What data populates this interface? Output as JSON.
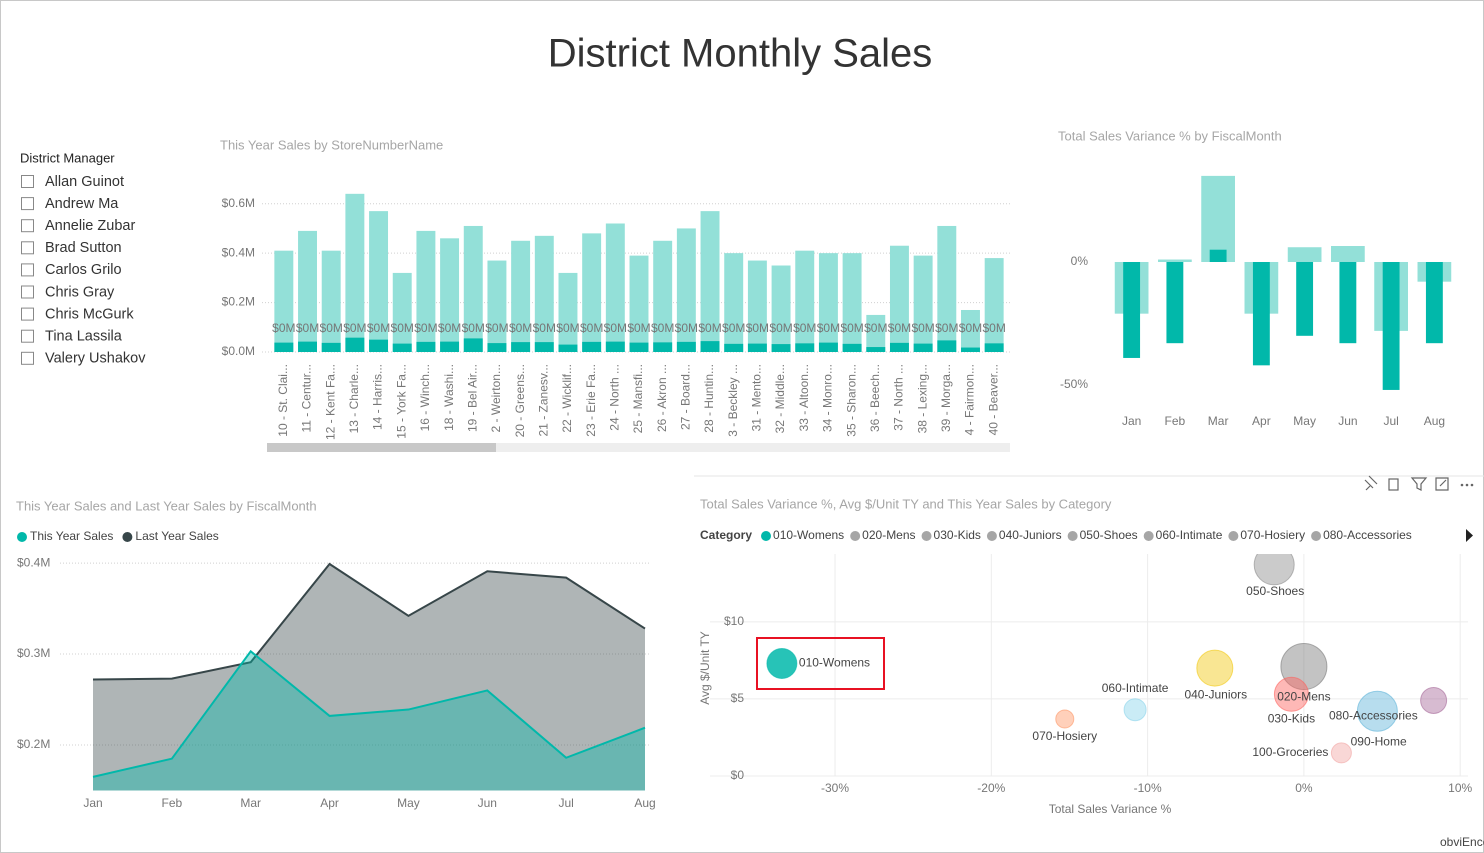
{
  "page": {
    "title": "District Monthly Sales",
    "footer": "obviEnce llc ©"
  },
  "slicer": {
    "title": "District Manager",
    "items": [
      "Allan Guinot",
      "Andrew Ma",
      "Annelie Zubar",
      "Brad Sutton",
      "Carlos Grilo",
      "Chris Gray",
      "Chris McGurk",
      "Tina Lassila",
      "Valery Ushakov"
    ]
  },
  "chart_data": [
    {
      "type": "bar",
      "title": "This Year Sales by StoreNumberName",
      "categories": [
        "10 - St. Clai...",
        "11 - Centur...",
        "12 - Kent Fa...",
        "13 - Charle...",
        "14 - Harris...",
        "15 - York Fa...",
        "16 - Winch...",
        "18 - Washi...",
        "19 - Bel Air...",
        "2 - Weirton...",
        "20 - Greens...",
        "21 - Zanesv...",
        "22 - Wicklif...",
        "23 - Erie Fa...",
        "24 - North ...",
        "25 - Mansfi...",
        "26 - Akron ...",
        "27 - Board...",
        "28 - Huntin...",
        "3 - Beckley ...",
        "31 - Mento...",
        "32 - Middle...",
        "33 - Altoon...",
        "34 - Monro...",
        "35 - Sharon...",
        "36 - Beech...",
        "37 - North ...",
        "38 - Lexing...",
        "39 - Morga...",
        "4 - Fairmon...",
        "40 - Beaver..."
      ],
      "series": [
        {
          "color": "#93e0d8",
          "values": [
            410000,
            490000,
            410000,
            640000,
            570000,
            320000,
            490000,
            460000,
            510000,
            370000,
            450000,
            470000,
            320000,
            480000,
            520000,
            390000,
            450000,
            500000,
            570000,
            400000,
            370000,
            350000,
            410000,
            400000,
            400000,
            150000,
            430000,
            390000,
            510000,
            170000,
            380000
          ]
        },
        {
          "color": "#01b8aa",
          "values": [
            38000,
            42000,
            37000,
            58000,
            50000,
            34000,
            41000,
            42000,
            55000,
            36000,
            40000,
            40000,
            30000,
            41000,
            42000,
            38000,
            39000,
            41000,
            44000,
            33000,
            34000,
            32000,
            35000,
            38000,
            33000,
            20000,
            37000,
            34000,
            47000,
            18000,
            35000
          ],
          "value_labels": [
            "$0M",
            "$0M",
            "$0M",
            "$0M",
            "$0M",
            "$0M",
            "$0M",
            "$0M",
            "$0M",
            "$0M",
            "$0M",
            "$0M",
            "$0M",
            "$0M",
            "$0M",
            "$0M",
            "$0M",
            "$0M",
            "$0M",
            "$0M",
            "$0M",
            "$0M",
            "$0M",
            "$0M",
            "$0M",
            "$0M",
            "$0M",
            "$0M",
            "$0M",
            "$0M",
            "$0M"
          ]
        }
      ],
      "ylim": [
        0,
        700000
      ],
      "yticks": [
        {
          "value": 0,
          "label": "$0.0M"
        },
        {
          "value": 200000,
          "label": "$0.2M"
        },
        {
          "value": 400000,
          "label": "$0.4M"
        },
        {
          "value": 600000,
          "label": "$0.6M"
        }
      ],
      "grid": true
    },
    {
      "type": "bar",
      "title": "Total Sales Variance % by FiscalMonth",
      "categories": [
        "Jan",
        "Feb",
        "Mar",
        "Apr",
        "May",
        "Jun",
        "Jul",
        "Aug"
      ],
      "series": [
        {
          "color": "#93e0d8",
          "values": [
            -21,
            1,
            35,
            -21,
            6,
            6.5,
            -28,
            -8
          ]
        },
        {
          "color": "#01b8aa",
          "values": [
            -39,
            -33,
            5,
            -42,
            -30,
            -33,
            -52,
            -33
          ]
        }
      ],
      "ylim": [
        -58,
        38
      ],
      "yticks": [
        {
          "value": -50,
          "label": "-50%"
        },
        {
          "value": 0,
          "label": "0%"
        }
      ],
      "grid": false
    },
    {
      "type": "area",
      "title": "This Year Sales and Last Year Sales by FiscalMonth",
      "categories": [
        "Jan",
        "Feb",
        "Mar",
        "Apr",
        "May",
        "Jun",
        "Jul",
        "Aug"
      ],
      "series": [
        {
          "name": "This Year Sales",
          "color": "#01b8aa",
          "values": [
            165000,
            185000,
            303000,
            232000,
            239000,
            260000,
            186000,
            219000
          ]
        },
        {
          "name": "Last Year Sales",
          "color": "#374649",
          "values": [
            272000,
            273000,
            291000,
            399000,
            342000,
            391000,
            384000,
            328000
          ]
        }
      ],
      "ylim": [
        150000,
        410000
      ],
      "yticks": [
        {
          "value": 200000,
          "label": "$0.2M"
        },
        {
          "value": 300000,
          "label": "$0.3M"
        },
        {
          "value": 400000,
          "label": "$0.4M"
        }
      ],
      "grid": true
    },
    {
      "type": "scatter",
      "title": "Total Sales Variance %, Avg $/Unit TY and This Year Sales by Category",
      "legend_title": "Category",
      "categories": [
        "010-Womens",
        "020-Mens",
        "030-Kids",
        "040-Juniors",
        "050-Shoes",
        "060-Intimate",
        "070-Hosiery",
        "080-Accessories",
        "090-Home",
        "100-Groceries"
      ],
      "x": [
        -33.4,
        0,
        -0.8,
        -5.7,
        -1.9,
        -10.8,
        -15.3,
        4.7,
        8.3,
        2.4
      ],
      "values": [
        7.3,
        7.1,
        5.3,
        7.0,
        13.7,
        4.3,
        3.7,
        4.2,
        4.9,
        1.5
      ],
      "sizes": [
        225,
        529,
        289,
        324,
        400,
        121,
        81,
        400,
        169,
        100
      ],
      "colors": [
        "#01b8aa",
        "#7a7a7a",
        "#fd625e",
        "#f2c80f",
        "#8c8c8c",
        "#8ad4eb",
        "#fe9666",
        "#5fb4d9",
        "#a66999",
        "#f2a7a5"
      ],
      "legend_colors": [
        "#01b8aa",
        "#a6a6a6",
        "#a6a6a6",
        "#a6a6a6",
        "#a6a6a6",
        "#a6a6a6",
        "#a6a6a6",
        "#a6a6a6"
      ],
      "xlabel": "Total Sales Variance %",
      "ylabel": "Avg $/Unit TY",
      "xlim": [
        -38,
        10.5
      ],
      "ylim": [
        0,
        14.4
      ],
      "xticks": [
        {
          "value": -30,
          "label": "-30%"
        },
        {
          "value": -20,
          "label": "-20%"
        },
        {
          "value": -10,
          "label": "-10%"
        },
        {
          "value": 0,
          "label": "0%"
        },
        {
          "value": 10,
          "label": "10%"
        }
      ],
      "yticks": [
        {
          "value": 0,
          "label": "$0"
        },
        {
          "value": 5,
          "label": "$5"
        },
        {
          "value": 10,
          "label": "$10"
        }
      ],
      "grid": true
    }
  ]
}
